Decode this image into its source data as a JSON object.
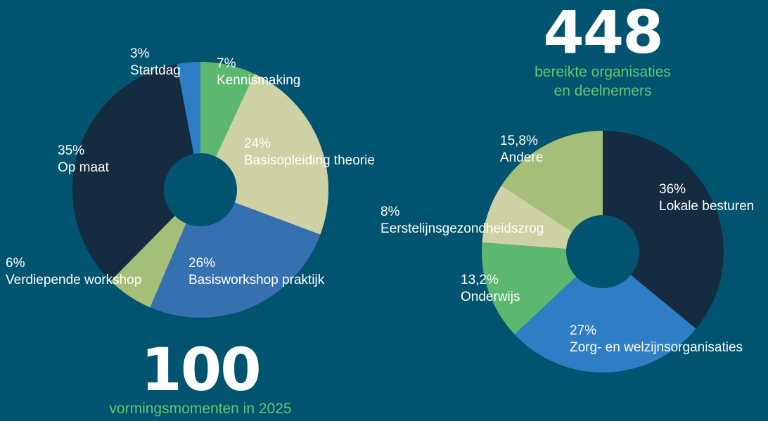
{
  "chart_data": [
    {
      "type": "donut",
      "categories": [
        "Kennismaking",
        "Basisopleiding theorie",
        "Basisworkshop praktijk",
        "Verdiepende workshop",
        "Op maat",
        "Startdag"
      ],
      "values": [
        7,
        24,
        26,
        6,
        35,
        3
      ],
      "value_labels": [
        "7%",
        "24%",
        "26%",
        "6%",
        "35%",
        "3%"
      ],
      "colors": [
        "#5cb86e",
        "#cdd1a4",
        "#3570b0",
        "#a6bf78",
        "#142b40",
        "#2f7dc4"
      ],
      "headline": {
        "number": 100,
        "caption": [
          "vormingsmomenten in 2025"
        ]
      }
    },
    {
      "type": "donut",
      "categories": [
        "Lokale besturen",
        "Zorg- en welzijnsorganisaties",
        "Onderwijs",
        "Eerstelijnsgezondheidszrog",
        "Andere"
      ],
      "values": [
        36,
        27,
        13.2,
        8,
        15.8
      ],
      "value_labels": [
        "36%",
        "27%",
        "13,2%",
        "8%",
        "15,8%"
      ],
      "colors": [
        "#142b40",
        "#2f7dc4",
        "#5cb86e",
        "#cdd1a4",
        "#a6bf78"
      ],
      "headline": {
        "number": 448,
        "caption": [
          "bereikte organisaties",
          "en deelnemers"
        ]
      }
    }
  ]
}
